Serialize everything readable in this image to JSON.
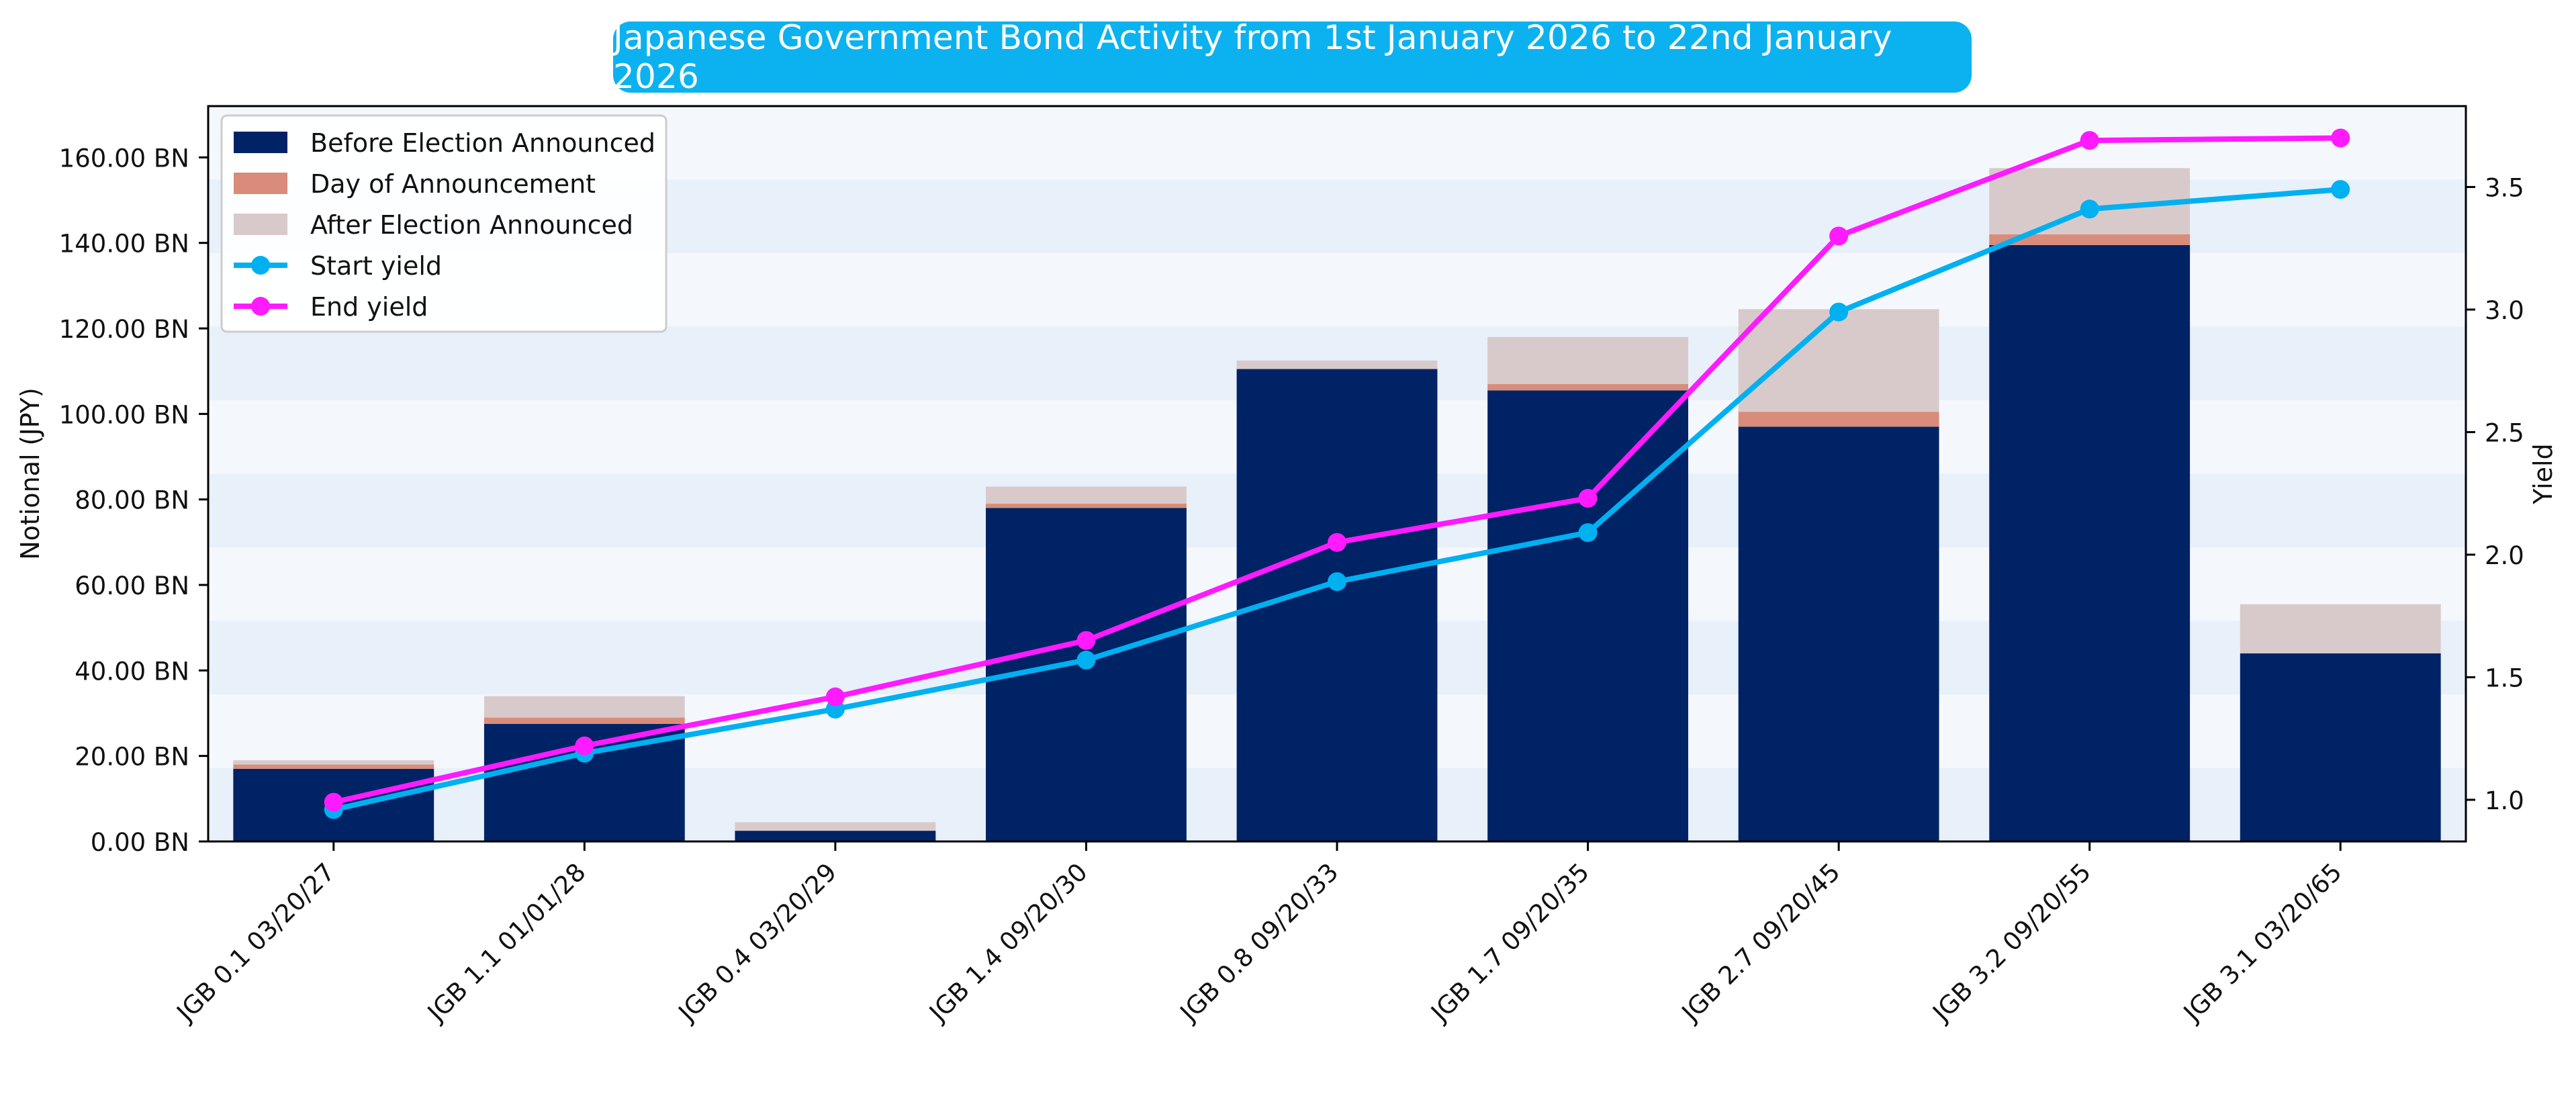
{
  "chart_data": {
    "type": "bar",
    "title": "Japanese Government Bond Activity from 1st January 2026 to 22nd January 2026",
    "xlabel": "",
    "ylabel": "Notional (JPY)",
    "y2label": "Yield",
    "categories": [
      "JGB 0.1 03/20/27",
      "JGB 1.1 01/01/28",
      "JGB 0.4 03/20/29",
      "JGB 1.4 09/20/30",
      "JGB 0.8 09/20/33",
      "JGB 1.7 09/20/35",
      "JGB 2.7 09/20/45",
      "JGB 3.2 09/20/55",
      "JGB 3.1 03/20/65"
    ],
    "series": [
      {
        "name": "Before Election Announced",
        "kind": "bar",
        "color": "#002366",
        "values": [
          17.0,
          27.5,
          2.5,
          78.0,
          110.5,
          105.5,
          97.0,
          139.5,
          44.0
        ]
      },
      {
        "name": "Day of Announcement",
        "kind": "bar",
        "color": "#d98c7a",
        "values": [
          1.0,
          1.5,
          0.0,
          1.0,
          0.0,
          1.5,
          3.5,
          2.5,
          0.0
        ]
      },
      {
        "name": "After Election Announced",
        "kind": "bar",
        "color": "#d8cacb",
        "values": [
          1.0,
          5.0,
          2.0,
          4.0,
          2.0,
          11.0,
          24.0,
          15.5,
          11.5
        ]
      },
      {
        "name": "Start yield",
        "kind": "line",
        "axis": "right",
        "color": "#00b0f0",
        "values": [
          0.96,
          1.19,
          1.37,
          1.57,
          1.89,
          2.09,
          2.99,
          3.41,
          3.49
        ]
      },
      {
        "name": "End yield",
        "kind": "line",
        "axis": "right",
        "color": "#ff1aff",
        "values": [
          0.99,
          1.22,
          1.42,
          1.65,
          2.05,
          2.23,
          3.3,
          3.69,
          3.7
        ]
      }
    ],
    "ylim": [
      0,
      172
    ],
    "y2lim": [
      0.83,
      3.83
    ],
    "yticks": [
      0,
      20,
      40,
      60,
      80,
      100,
      120,
      140,
      160
    ],
    "ytick_labels": [
      "0.00 BN",
      "20.00 BN",
      "40.00 BN",
      "60.00 BN",
      "80.00 BN",
      "100.00 BN",
      "120.00 BN",
      "140.00 BN",
      "160.00 BN"
    ],
    "y2ticks": [
      1.0,
      1.5,
      2.0,
      2.5,
      3.0,
      3.5
    ],
    "y2tick_labels": [
      "1.0",
      "1.5",
      "2.0",
      "2.5",
      "3.0",
      "3.5"
    ],
    "legend": [
      "Before Election Announced",
      "Day of Announcement",
      "After Election Announced",
      "Start yield",
      "End yield"
    ],
    "legend_position": "top-left",
    "background_bands": {
      "band_size": 17.2,
      "color_even": "#e8f0f9",
      "color_odd": "#f4f8fd"
    }
  }
}
